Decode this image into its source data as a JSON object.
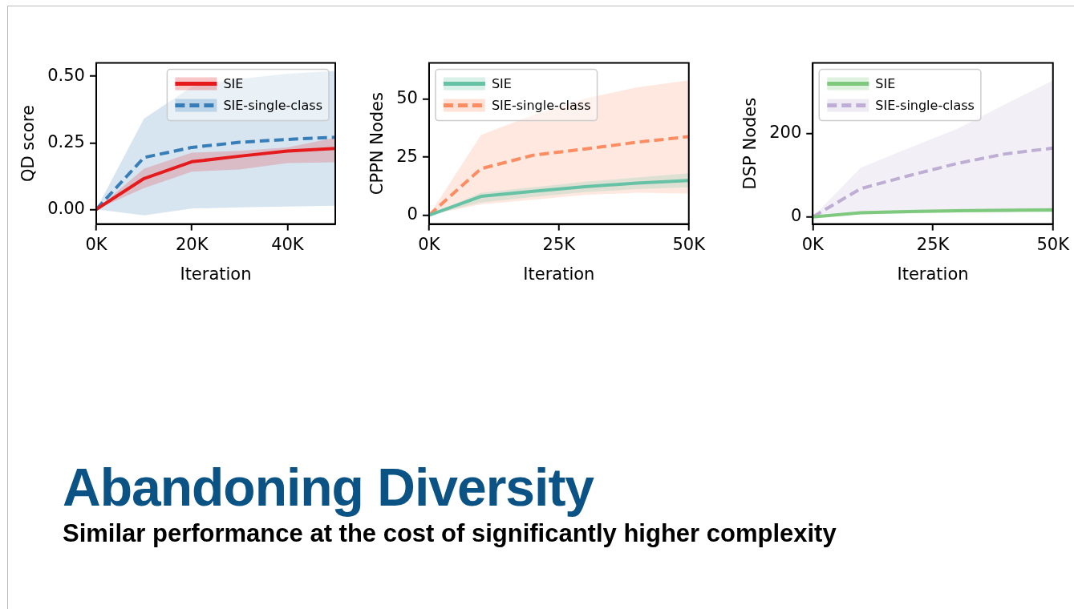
{
  "chart_data": [
    {
      "type": "line",
      "xlabel": "Iteration",
      "ylabel": "QD score",
      "xlim": [
        0,
        50000
      ],
      "ylim": [
        -0.055,
        0.55
      ],
      "xticks": [
        {
          "value": 0,
          "label": "0K"
        },
        {
          "value": 20000,
          "label": "20K"
        },
        {
          "value": 40000,
          "label": "40K"
        }
      ],
      "yticks": [
        {
          "value": 0,
          "label": "0.00"
        },
        {
          "value": 0.25,
          "label": "0.25"
        },
        {
          "value": 0.5,
          "label": "0.50"
        }
      ],
      "legend": "top right",
      "x": [
        0,
        10000,
        20000,
        30000,
        40000,
        50000
      ],
      "series": [
        {
          "name": "SIE",
          "color": "#e41a1c",
          "line_style": "solid",
          "values": [
            0,
            0.116,
            0.179,
            0.2,
            0.219,
            0.229
          ],
          "lower": [
            0,
            0.08,
            0.142,
            0.15,
            0.174,
            0.177
          ],
          "upper": [
            0,
            0.153,
            0.213,
            0.22,
            0.233,
            0.27
          ]
        },
        {
          "name": "SIE-single-class",
          "color": "#377eb8",
          "line_style": "dashed",
          "values": [
            0,
            0.195,
            0.233,
            0.252,
            0.263,
            0.271
          ],
          "lower": [
            0,
            -0.022,
            0.003,
            0.008,
            0.011,
            0.014
          ],
          "upper": [
            0,
            0.341,
            0.461,
            0.49,
            0.51,
            0.52
          ]
        }
      ]
    },
    {
      "type": "line",
      "xlabel": "Iteration",
      "ylabel": "CPPN Nodes",
      "xlim": [
        0,
        50000
      ],
      "ylim": [
        -3.8,
        65.5
      ],
      "xticks": [
        {
          "value": 0,
          "label": "0K"
        },
        {
          "value": 25000,
          "label": "25K"
        },
        {
          "value": 50000,
          "label": "50K"
        }
      ],
      "yticks": [
        0,
        25,
        50
      ],
      "legend": "top left",
      "x": [
        0,
        10000,
        20000,
        30000,
        40000,
        50000
      ],
      "series": [
        {
          "name": "SIE",
          "color": "#66c2a5",
          "line_style": "solid",
          "values": [
            0,
            8.1,
            10.3,
            12.3,
            13.8,
            14.9
          ],
          "lower": [
            0,
            5.5,
            7.9,
            9.9,
            11.2,
            12
          ],
          "upper": [
            0,
            9.7,
            12,
            14.4,
            16.2,
            18
          ]
        },
        {
          "name": "SIE-single-class",
          "color": "#fc8d62",
          "line_style": "dashed",
          "values": [
            0,
            20,
            25.8,
            28.5,
            31.4,
            33.8
          ],
          "lower": [
            0,
            4.7,
            6.7,
            8.7,
            9.7,
            9.3
          ],
          "upper": [
            0,
            34.5,
            43.1,
            50.2,
            55,
            58
          ]
        }
      ]
    },
    {
      "type": "line",
      "xlabel": "Iteration",
      "ylabel": "DSP Nodes",
      "xlim": [
        0,
        50000
      ],
      "ylim": [
        -17,
        369
      ],
      "xticks": [
        {
          "value": 0,
          "label": "0K"
        },
        {
          "value": 25000,
          "label": "25K"
        },
        {
          "value": 50000,
          "label": "50K"
        }
      ],
      "yticks": [
        0,
        200
      ],
      "legend": "top left",
      "x": [
        0,
        10000,
        20000,
        30000,
        40000,
        50000
      ],
      "series": [
        {
          "name": "SIE",
          "color": "#7fc97f",
          "line_style": "solid",
          "values": [
            0,
            10,
            13,
            15,
            16,
            17
          ],
          "lower": [
            0,
            6,
            8,
            10,
            11,
            11
          ],
          "upper": [
            0,
            14,
            17,
            19,
            21,
            22
          ]
        },
        {
          "name": "SIE-single-class",
          "color": "#beaed4",
          "line_style": "dashed",
          "values": [
            0,
            68,
            99,
            128,
            151,
            165
          ],
          "lower": [
            0,
            8,
            11,
            13,
            13,
            14
          ],
          "upper": [
            0,
            118,
            165,
            211,
            270,
            327
          ]
        }
      ]
    },
    {
      "type": "other",
      "title": "Abandoning Diversity",
      "subtitle": "Similar performance at the cost of significantly higher complexity"
    }
  ]
}
